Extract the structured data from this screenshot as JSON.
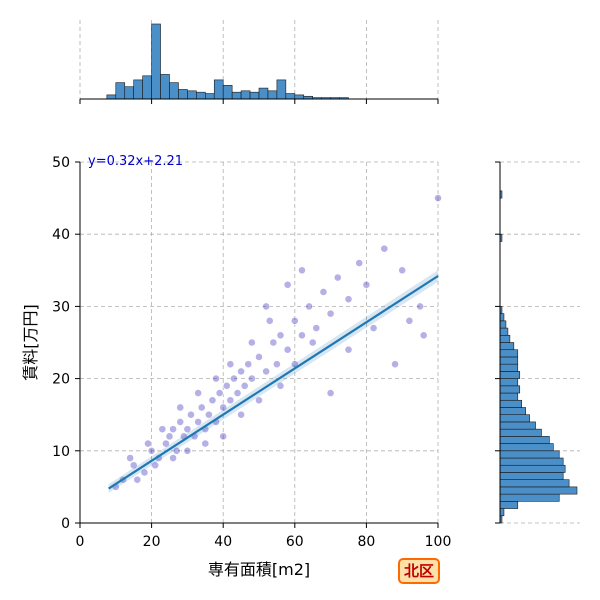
{
  "chart_data": {
    "type": "scatter",
    "xlabel": "専有面積[m2]",
    "ylabel": "賃料[万円]",
    "xlim": [
      0,
      100
    ],
    "ylim": [
      0,
      50
    ],
    "x_ticks": [
      "0",
      "20",
      "40",
      "60",
      "80",
      "100"
    ],
    "y_ticks": [
      "0",
      "10",
      "20",
      "30",
      "40",
      "50"
    ],
    "grid": true,
    "regression": {
      "equation": "y=0.32x+2.21",
      "slope": 0.32,
      "intercept": 2.21,
      "x_range": [
        8,
        100
      ]
    },
    "points": [
      [
        12,
        6
      ],
      [
        15,
        8
      ],
      [
        18,
        7
      ],
      [
        20,
        10
      ],
      [
        22,
        9
      ],
      [
        24,
        11
      ],
      [
        25,
        12
      ],
      [
        26,
        13
      ],
      [
        27,
        10
      ],
      [
        28,
        14
      ],
      [
        29,
        12
      ],
      [
        30,
        13
      ],
      [
        31,
        15
      ],
      [
        32,
        12
      ],
      [
        33,
        14
      ],
      [
        34,
        16
      ],
      [
        35,
        13
      ],
      [
        36,
        15
      ],
      [
        37,
        17
      ],
      [
        38,
        14
      ],
      [
        39,
        18
      ],
      [
        40,
        16
      ],
      [
        41,
        19
      ],
      [
        42,
        17
      ],
      [
        43,
        20
      ],
      [
        44,
        18
      ],
      [
        45,
        21
      ],
      [
        46,
        19
      ],
      [
        47,
        22
      ],
      [
        48,
        20
      ],
      [
        50,
        23
      ],
      [
        52,
        21
      ],
      [
        54,
        25
      ],
      [
        55,
        22
      ],
      [
        56,
        26
      ],
      [
        58,
        24
      ],
      [
        60,
        28
      ],
      [
        62,
        26
      ],
      [
        64,
        30
      ],
      [
        66,
        27
      ],
      [
        68,
        32
      ],
      [
        70,
        29
      ],
      [
        72,
        34
      ],
      [
        75,
        31
      ],
      [
        78,
        36
      ],
      [
        80,
        33
      ],
      [
        85,
        38
      ],
      [
        90,
        35
      ],
      [
        95,
        30
      ],
      [
        100,
        45
      ],
      [
        10,
        5
      ],
      [
        14,
        9
      ],
      [
        16,
        6
      ],
      [
        19,
        11
      ],
      [
        21,
        8
      ],
      [
        23,
        13
      ],
      [
        26,
        9
      ],
      [
        28,
        16
      ],
      [
        30,
        10
      ],
      [
        33,
        18
      ],
      [
        35,
        11
      ],
      [
        38,
        20
      ],
      [
        40,
        12
      ],
      [
        42,
        22
      ],
      [
        45,
        15
      ],
      [
        48,
        25
      ],
      [
        50,
        17
      ],
      [
        53,
        28
      ],
      [
        56,
        19
      ],
      [
        60,
        22
      ],
      [
        65,
        25
      ],
      [
        70,
        18
      ],
      [
        75,
        24
      ],
      [
        82,
        27
      ],
      [
        88,
        22
      ],
      [
        92,
        28
      ],
      [
        96,
        26
      ],
      [
        62,
        35
      ],
      [
        58,
        33
      ],
      [
        52,
        30
      ]
    ],
    "x_marginal": {
      "bin_start": 0,
      "bin_width": 2.5,
      "counts": [
        0,
        0,
        0,
        3,
        12,
        9,
        14,
        17,
        55,
        18,
        12,
        7,
        6,
        5,
        4,
        14,
        10,
        5,
        6,
        5,
        8,
        6,
        14,
        4,
        3,
        2,
        1,
        1,
        1,
        1,
        0,
        0,
        0,
        0,
        0,
        0,
        0,
        0,
        0,
        0
      ]
    },
    "y_marginal": {
      "bin_start": 0,
      "bin_width": 1,
      "counts": [
        1,
        2,
        9,
        30,
        39,
        35,
        32,
        33,
        32,
        30,
        27,
        25,
        21,
        18,
        15,
        13,
        11,
        9,
        10,
        9,
        10,
        9,
        9,
        9,
        7,
        5,
        4,
        3,
        2,
        1,
        0,
        0,
        0,
        0,
        0,
        0,
        0,
        0,
        0,
        1,
        0,
        0,
        0,
        0,
        0,
        1,
        0,
        0,
        0,
        0
      ]
    },
    "colors": {
      "scatter": "#2a1fb8",
      "line": "#1f77b4",
      "hist": "#4b8fc8",
      "grid": "#b0b0b0"
    }
  },
  "badge": {
    "label": "北区"
  }
}
